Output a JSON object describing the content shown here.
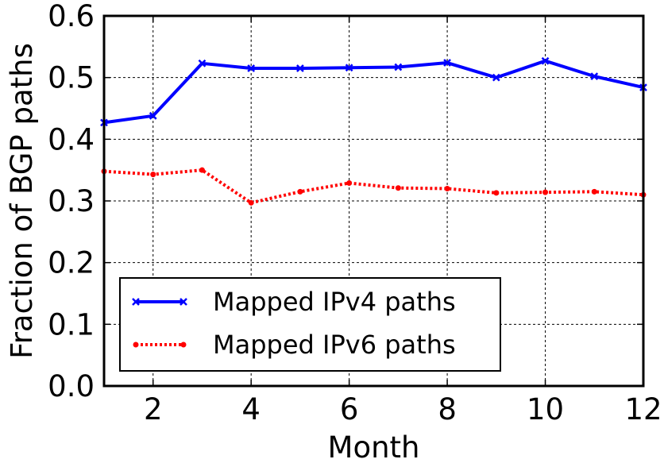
{
  "chart_data": {
    "type": "line",
    "xlabel": "Month",
    "ylabel": "Fraction of BGP paths",
    "xlim": [
      1,
      12
    ],
    "ylim": [
      0.0,
      0.6
    ],
    "xticks": [
      2,
      4,
      6,
      8,
      10,
      12
    ],
    "yticks": [
      0.0,
      0.1,
      0.2,
      0.3,
      0.4,
      0.5,
      0.6
    ],
    "ytick_labels": [
      "0.0",
      "0.1",
      "0.2",
      "0.3",
      "0.4",
      "0.5",
      "0.6"
    ],
    "grid": true,
    "legend_position": "lower-left",
    "x": [
      1,
      2,
      3,
      4,
      5,
      6,
      7,
      8,
      9,
      10,
      11,
      12
    ],
    "series": [
      {
        "name": "Mapped IPv4 paths",
        "color": "#0000ff",
        "style": "solid",
        "values": [
          0.427,
          0.438,
          0.523,
          0.515,
          0.515,
          0.516,
          0.517,
          0.524,
          0.5,
          0.527,
          0.502,
          0.484
        ]
      },
      {
        "name": "Mapped IPv6 paths",
        "color": "#ff0000",
        "style": "dotted",
        "values": [
          0.348,
          0.343,
          0.35,
          0.297,
          0.315,
          0.329,
          0.321,
          0.32,
          0.313,
          0.314,
          0.315,
          0.31
        ]
      }
    ]
  }
}
